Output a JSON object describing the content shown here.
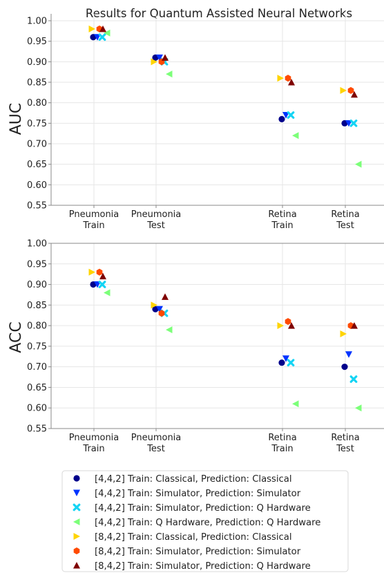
{
  "title": "Results for Quantum Assisted Neural Networks",
  "chart_data": [
    {
      "type": "scatter",
      "ylabel": "AUC",
      "ylim": [
        0.55,
        1.0
      ],
      "yticks": [
        "0.55",
        "0.60",
        "0.65",
        "0.70",
        "0.75",
        "0.80",
        "0.85",
        "0.90",
        "0.95",
        "1.00"
      ],
      "categories": [
        [
          "Pneumonia",
          "Train"
        ],
        [
          "Pneumonia",
          "Test"
        ],
        [
          "Retina",
          "Train"
        ],
        [
          "Retina",
          "Test"
        ]
      ],
      "grid": true,
      "series": [
        {
          "name": "[4,4,2] Train: Classical, Prediction: Classical",
          "values": [
            0.96,
            0.91,
            0.76,
            0.75
          ]
        },
        {
          "name": "[4,4,2] Train: Simulator,  Prediction: Simulator",
          "values": [
            0.96,
            0.91,
            0.77,
            0.75
          ]
        },
        {
          "name": "[4,4,2] Train: Simulator,  Prediction: Q Hardware",
          "values": [
            0.96,
            0.9,
            0.77,
            0.75
          ]
        },
        {
          "name": "[4,4,2] Train: Q Hardware, Prediction: Q Hardware",
          "values": [
            0.97,
            0.87,
            0.72,
            0.65
          ]
        },
        {
          "name": "[8,4,2] Train: Classical,  Prediction: Classical",
          "values": [
            0.98,
            0.9,
            0.86,
            0.83
          ]
        },
        {
          "name": "[8,4,2] Train: Simulator,  Prediction: Simulator",
          "values": [
            0.98,
            0.9,
            0.86,
            0.83
          ]
        },
        {
          "name": "[8,4,2] Train: Simulator,  Prediction: Q Hardware",
          "values": [
            0.98,
            0.91,
            0.85,
            0.82
          ]
        }
      ]
    },
    {
      "type": "scatter",
      "ylabel": "ACC",
      "ylim": [
        0.55,
        1.0
      ],
      "yticks": [
        "0.55",
        "0.60",
        "0.65",
        "0.70",
        "0.75",
        "0.80",
        "0.85",
        "0.90",
        "0.95",
        "1.00"
      ],
      "categories": [
        [
          "Pneumonia",
          "Train"
        ],
        [
          "Pneumonia",
          "Test"
        ],
        [
          "Retina",
          "Train"
        ],
        [
          "Retina",
          "Test"
        ]
      ],
      "grid": true,
      "series": [
        {
          "name": "[4,4,2] Train: Classical, Prediction: Classical",
          "values": [
            0.9,
            0.84,
            0.71,
            0.7
          ]
        },
        {
          "name": "[4,4,2] Train: Simulator,  Prediction: Simulator",
          "values": [
            0.9,
            0.84,
            0.72,
            0.73
          ]
        },
        {
          "name": "[4,4,2] Train: Simulator,  Prediction: Q Hardware",
          "values": [
            0.9,
            0.83,
            0.71,
            0.67
          ]
        },
        {
          "name": "[4,4,2] Train: Q Hardware, Prediction: Q Hardware",
          "values": [
            0.88,
            0.79,
            0.61,
            0.6
          ]
        },
        {
          "name": "[8,4,2] Train: Classical,  Prediction: Classical",
          "values": [
            0.93,
            0.85,
            0.8,
            0.78
          ]
        },
        {
          "name": "[8,4,2] Train: Simulator,  Prediction: Simulator",
          "values": [
            0.93,
            0.83,
            0.81,
            0.8
          ]
        },
        {
          "name": "[8,4,2] Train: Simulator,  Prediction: Q Hardware",
          "values": [
            0.92,
            0.87,
            0.8,
            0.8
          ]
        }
      ]
    }
  ],
  "legend": {
    "placement": "bottom",
    "entries": [
      {
        "label": "[4,4,2] Train: Classical, Prediction: Classical",
        "marker": "circle",
        "color": "#00008b"
      },
      {
        "label": "[4,4,2] Train: Simulator,  Prediction: Simulator",
        "marker": "triangle-down",
        "color": "#0033ff"
      },
      {
        "label": "[4,4,2] Train: Simulator,  Prediction: Q Hardware",
        "marker": "x",
        "color": "#14d4f4"
      },
      {
        "label": "[4,4,2] Train: Q Hardware, Prediction: Q Hardware",
        "marker": "triangle-left",
        "color": "#7cff79"
      },
      {
        "label": "[8,4,2] Train: Classical,  Prediction: Classical",
        "marker": "triangle-right",
        "color": "#ffd400"
      },
      {
        "label": "[8,4,2] Train: Simulator,  Prediction: Simulator",
        "marker": "hexagon",
        "color": "#ff4a00"
      },
      {
        "label": "[8,4,2] Train: Simulator,  Prediction: Q Hardware",
        "marker": "triangle-up",
        "color": "#7f0000"
      }
    ]
  }
}
